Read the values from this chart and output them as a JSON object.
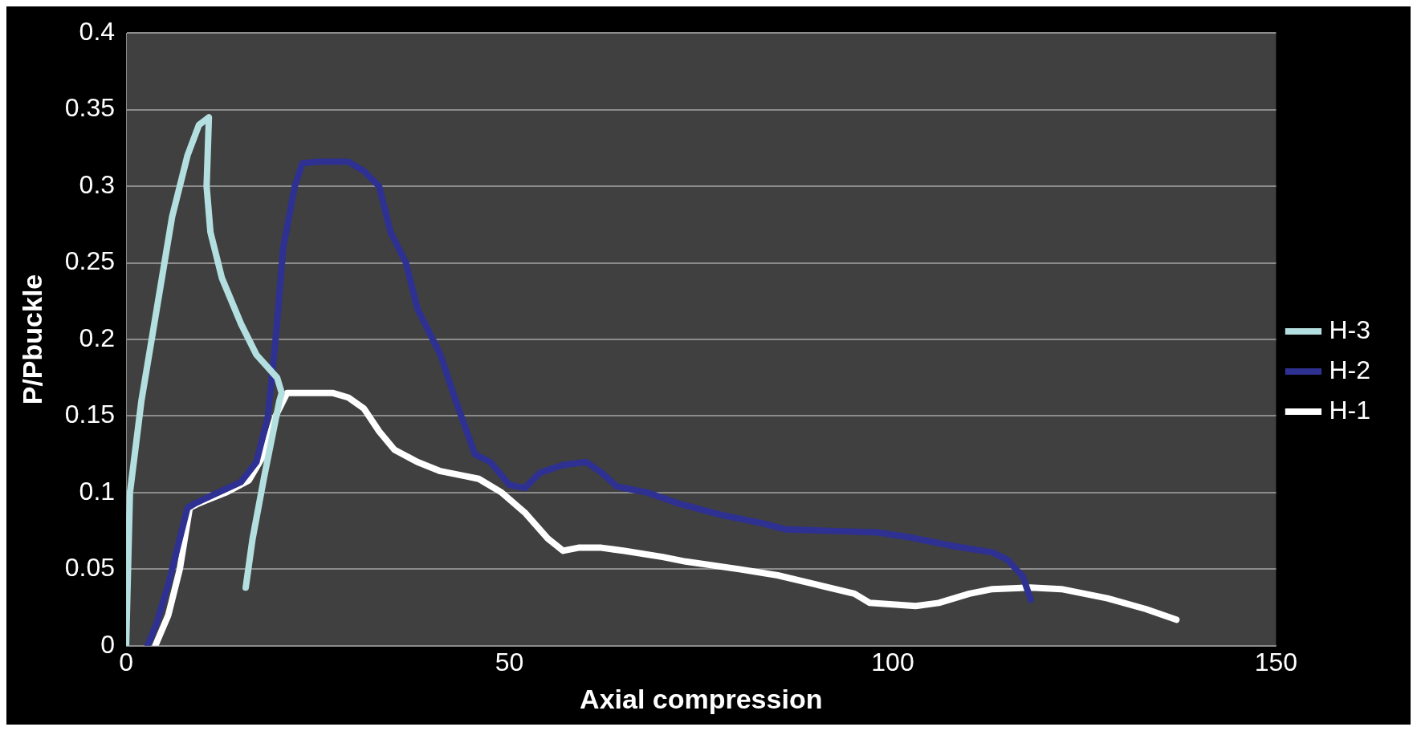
{
  "chart_data": {
    "type": "line",
    "xlabel": "Axial compression",
    "ylabel": "P/Pbuckle",
    "xlim": [
      0,
      150
    ],
    "xticks": [
      0,
      50,
      100,
      150
    ],
    "ylim": [
      0,
      0.4
    ],
    "yticks": [
      0,
      0.05,
      0.1,
      0.15,
      0.2,
      0.25,
      0.3,
      0.35,
      0.4
    ],
    "grid": "y",
    "legend": "right",
    "marker": "none",
    "line_style": "solid",
    "series": [
      {
        "name": "H-3",
        "color": "#b4dfe0",
        "x": [
          0,
          0.5,
          2,
          4,
          6,
          8,
          9.5,
          10.8,
          10.5,
          11,
          12.5,
          15,
          17,
          19.7,
          20.3,
          20,
          18,
          16.5,
          15.6
        ],
        "values": [
          0,
          0.1,
          0.16,
          0.22,
          0.28,
          0.32,
          0.34,
          0.345,
          0.3,
          0.27,
          0.24,
          0.21,
          0.19,
          0.175,
          0.165,
          0.16,
          0.11,
          0.07,
          0.038
        ]
      },
      {
        "name": "H-2",
        "color": "#2e3192",
        "x": [
          2.8,
          4,
          5.5,
          7,
          8,
          9,
          12,
          15,
          17,
          18.5,
          19.5,
          20.5,
          22,
          23,
          25,
          29,
          31,
          33,
          34.5,
          36.5,
          38,
          41,
          43,
          45.5,
          47.5,
          50,
          52,
          54,
          57,
          60,
          62,
          64,
          68,
          72,
          78,
          83,
          86,
          92,
          98,
          102,
          108,
          113,
          115,
          117,
          118
        ],
        "values": [
          0,
          0.015,
          0.04,
          0.07,
          0.09,
          0.093,
          0.1,
          0.107,
          0.12,
          0.15,
          0.2,
          0.26,
          0.3,
          0.315,
          0.316,
          0.316,
          0.31,
          0.3,
          0.27,
          0.25,
          0.22,
          0.19,
          0.16,
          0.125,
          0.12,
          0.105,
          0.103,
          0.113,
          0.118,
          0.12,
          0.113,
          0.104,
          0.1,
          0.093,
          0.085,
          0.08,
          0.076,
          0.075,
          0.074,
          0.071,
          0.065,
          0.061,
          0.056,
          0.045,
          0.03
        ]
      },
      {
        "name": "H-1",
        "color": "#ffffff",
        "x": [
          3.8,
          5.5,
          7,
          8.3,
          9.5,
          13,
          16,
          18,
          19.5,
          21,
          24,
          27,
          29,
          31,
          33,
          35,
          38,
          41,
          44,
          46,
          49,
          52,
          55,
          57,
          59,
          62,
          65,
          70,
          73,
          80,
          85,
          90,
          95,
          97,
          100,
          103,
          106,
          110,
          113,
          118,
          122,
          128,
          133,
          137
        ],
        "values": [
          0,
          0.02,
          0.05,
          0.09,
          0.093,
          0.1,
          0.108,
          0.125,
          0.15,
          0.165,
          0.165,
          0.165,
          0.162,
          0.155,
          0.14,
          0.128,
          0.12,
          0.114,
          0.111,
          0.109,
          0.1,
          0.087,
          0.07,
          0.062,
          0.064,
          0.064,
          0.062,
          0.058,
          0.055,
          0.05,
          0.046,
          0.04,
          0.034,
          0.028,
          0.027,
          0.026,
          0.028,
          0.034,
          0.037,
          0.038,
          0.037,
          0.031,
          0.024,
          0.017
        ]
      }
    ]
  }
}
